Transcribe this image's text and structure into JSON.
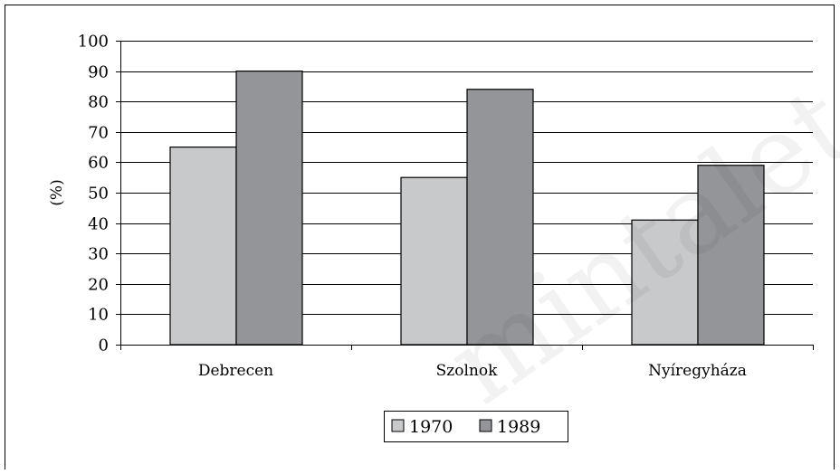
{
  "chart_data": {
    "type": "bar",
    "title": "",
    "xlabel": "",
    "ylabel": "(%)",
    "ylim": [
      0,
      100
    ],
    "yticks": [
      0,
      10,
      20,
      30,
      40,
      50,
      60,
      70,
      80,
      90,
      100
    ],
    "categories": [
      "Debrecen",
      "Szolnok",
      "Nyíregyháza"
    ],
    "series": [
      {
        "name": "1970",
        "values": [
          65,
          55,
          41
        ],
        "color": "#c8c9cb"
      },
      {
        "name": "1989",
        "values": [
          90,
          84,
          59
        ],
        "color": "#939598"
      }
    ],
    "grid": true,
    "legend": "bottom-center",
    "watermark": "mintaletétel"
  }
}
